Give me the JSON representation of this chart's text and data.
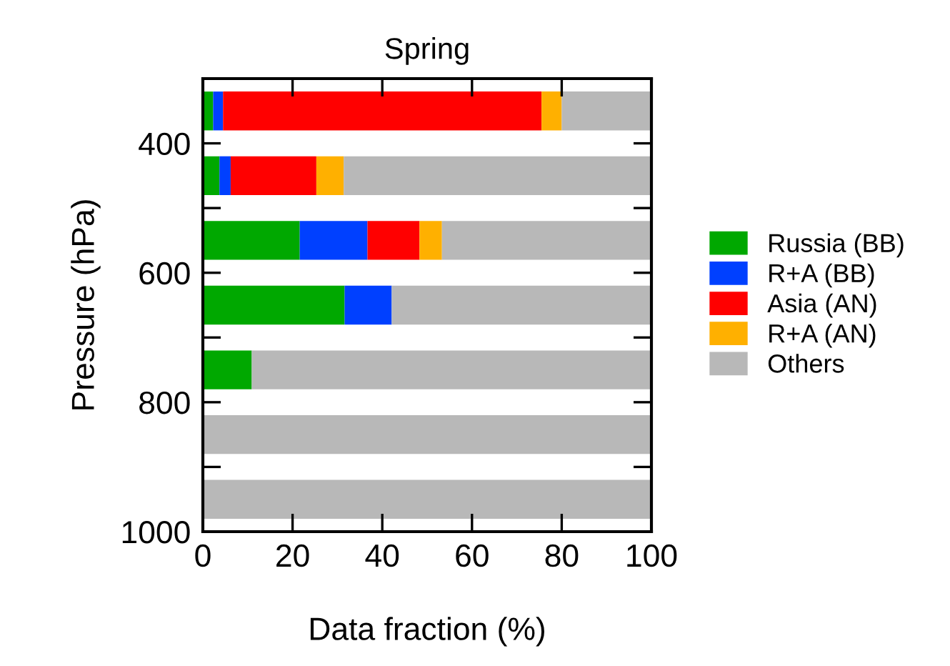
{
  "chart_data": {
    "type": "bar",
    "orientation": "horizontal",
    "stacked": true,
    "title": "Spring",
    "xlabel": "Data fraction (%)",
    "ylabel": "Pressure (hPa)",
    "x": [
      350,
      450,
      550,
      650,
      750,
      850,
      950
    ],
    "series": [
      {
        "name": "Russia (BB)",
        "color": "#00a800",
        "values": [
          2.3,
          3.7,
          21.6,
          31.6,
          10.9,
          0,
          0
        ]
      },
      {
        "name": "R+A (BB)",
        "color": "#0040ff",
        "values": [
          2.2,
          2.5,
          15.1,
          10.5,
          0,
          0,
          0
        ]
      },
      {
        "name": "Asia (AN)",
        "color": "#ff0000",
        "values": [
          71,
          19.1,
          11.6,
          0,
          0,
          0,
          0
        ]
      },
      {
        "name": "R+A (AN)",
        "color": "#ffb000",
        "values": [
          4.5,
          6.1,
          5.0,
          0,
          0,
          0,
          0
        ]
      },
      {
        "name": "Others",
        "color": "#b8b8b8",
        "values": [
          20,
          68.6,
          46.7,
          57.9,
          89.1,
          100,
          100
        ]
      }
    ],
    "xlim": [
      0,
      100
    ],
    "xticks": [
      0,
      20,
      40,
      60,
      80,
      100
    ],
    "ylim": [
      1000,
      300
    ],
    "yticks": [
      {
        "value": 300,
        "label": null
      },
      400,
      {
        "value": 500,
        "label": null
      },
      600,
      {
        "value": 700,
        "label": null
      },
      800,
      {
        "value": 900,
        "label": null
      },
      1000
    ],
    "legend": "right",
    "grid": false
  }
}
